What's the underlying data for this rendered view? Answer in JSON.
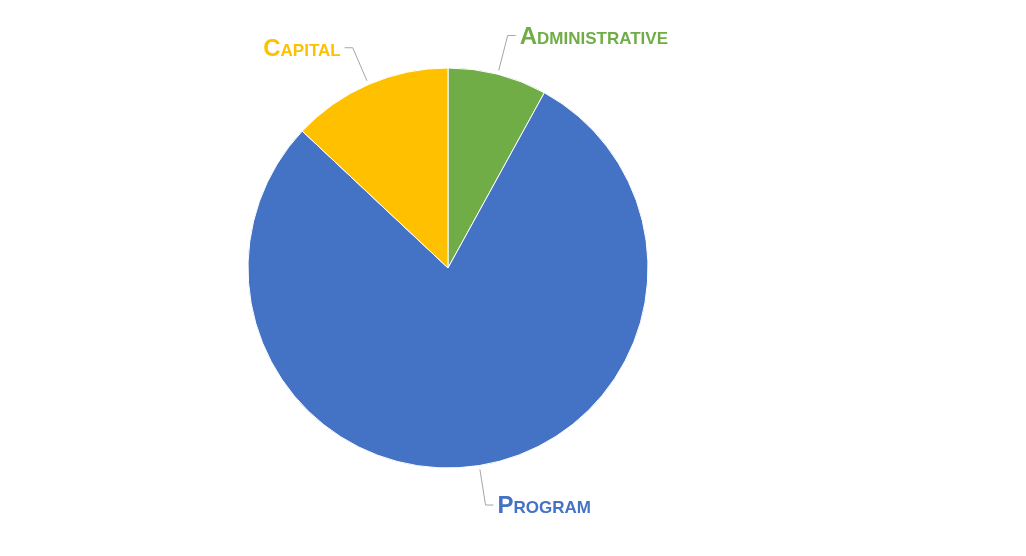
{
  "chart_data": {
    "type": "pie",
    "categories": [
      "Administrative",
      "Program",
      "Capital"
    ],
    "values": [
      8,
      79,
      13
    ],
    "colors": [
      "#70ad47",
      "#4472c4",
      "#ffc000"
    ]
  }
}
